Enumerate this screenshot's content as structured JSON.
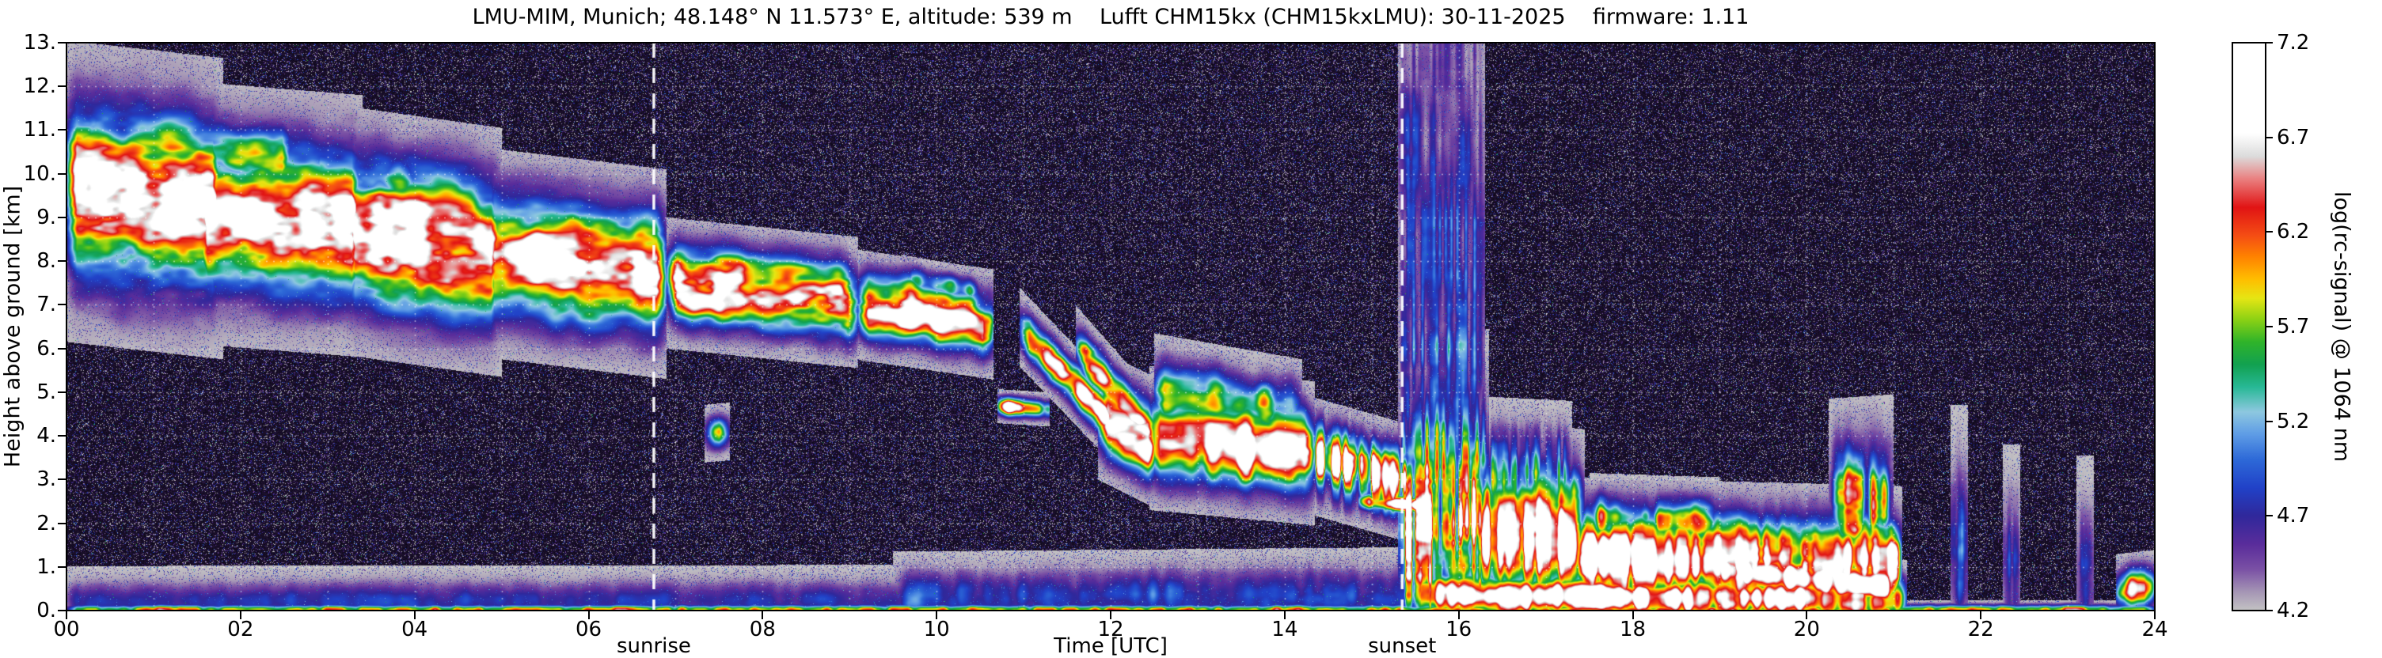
{
  "chart_data": {
    "type": "heatmap",
    "title": "LMU-MIM, Munich; 48.148° N 11.573° E, altitude: 539 m    Lufft CHM15kx (CHM15kxLMU): 30-11-2025    firmware: 1.11",
    "xlabel": "Time [UTC]",
    "ylabel": "Height above ground [km]",
    "xlim": [
      0,
      24
    ],
    "ylim": [
      0,
      13
    ],
    "x_tick_values": [
      0,
      2,
      4,
      6,
      8,
      10,
      12,
      14,
      16,
      18,
      20,
      22,
      24
    ],
    "x_tick_labels": [
      "00",
      "02",
      "04",
      "06",
      "08",
      "10",
      "12",
      "14",
      "16",
      "18",
      "20",
      "22",
      "24"
    ],
    "y_tick_values": [
      0,
      1,
      2,
      3,
      4,
      5,
      6,
      7,
      8,
      9,
      10,
      11,
      12,
      13
    ],
    "y_tick_labels": [
      "0.",
      "1.",
      "2.",
      "3.",
      "4.",
      "5.",
      "6.",
      "7.",
      "8.",
      "9.",
      "10.",
      "11.",
      "12.",
      "13."
    ],
    "grid": {
      "x_step": 1,
      "y_step": 1,
      "style": "dotted",
      "color": "#ffffff"
    },
    "annotations": [
      {
        "label": "sunrise",
        "x": 6.75
      },
      {
        "label": "sunset",
        "x": 15.35
      }
    ],
    "colorbar": {
      "label": "log(rc-signal) @ 1064 nm",
      "vmin": 4.2,
      "vmax": 7.2,
      "tick_values": [
        4.2,
        4.7,
        5.2,
        5.7,
        6.2,
        6.7,
        7.2
      ],
      "tick_labels": [
        "4.2",
        "4.7",
        "5.2",
        "5.7",
        "6.2",
        "6.7",
        "7.2"
      ],
      "stops": [
        [
          4.2,
          "#c4c4c4"
        ],
        [
          4.3,
          "#a595b5"
        ],
        [
          4.42,
          "#7a50a5"
        ],
        [
          4.55,
          "#5a2d9b"
        ],
        [
          4.7,
          "#30289b"
        ],
        [
          4.85,
          "#2142c8"
        ],
        [
          5.0,
          "#2e6ad8"
        ],
        [
          5.13,
          "#5e9ce6"
        ],
        [
          5.25,
          "#8ec8e0"
        ],
        [
          5.38,
          "#28b996"
        ],
        [
          5.5,
          "#12a150"
        ],
        [
          5.62,
          "#30b42a"
        ],
        [
          5.74,
          "#8ed214"
        ],
        [
          5.85,
          "#e6e614"
        ],
        [
          5.95,
          "#ffbe00"
        ],
        [
          6.07,
          "#ff8200"
        ],
        [
          6.18,
          "#f54e14"
        ],
        [
          6.33,
          "#e11414"
        ],
        [
          6.48,
          "#ea8080"
        ],
        [
          6.6,
          "#dcdcdc"
        ],
        [
          6.72,
          "#ffffff"
        ],
        [
          7.2,
          "#ffffff"
        ]
      ]
    },
    "noise": {
      "base": 3.7,
      "spread": 0.52,
      "speckle_p": 0.16,
      "speckle_amp": 0.95,
      "bright_p": 0.01,
      "bright_amp": 1.4,
      "day_factor": 1.3,
      "day_range": [
        6.75,
        15.35
      ],
      "deep": "#02020a",
      "under_top": "#241538"
    },
    "features": [
      {
        "t": [
          0.0,
          1.8
        ],
        "h": [
          9.6,
          9.2
        ],
        "w": 1.15,
        "amp": 7.0,
        "tex": 0.7,
        "stripe": 0.25,
        "sf": 5
      },
      {
        "t": [
          0.0,
          2.6
        ],
        "h": [
          10.8,
          10.3
        ],
        "w": 0.45,
        "amp": 5.6,
        "tex": 0.85,
        "stripe": 0.3,
        "sf": 4
      },
      {
        "t": [
          1.5,
          3.4
        ],
        "h": [
          9.1,
          8.8
        ],
        "w": 1.0,
        "amp": 7.0,
        "tex": 0.7,
        "stripe": 0.25,
        "sf": 5
      },
      {
        "t": [
          3.2,
          5.0
        ],
        "h": [
          8.7,
          8.2
        ],
        "w": 0.95,
        "amp": 7.0,
        "tex": 0.7,
        "stripe": 0.25,
        "sf": 5
      },
      {
        "t": [
          4.8,
          6.9
        ],
        "h": [
          8.2,
          7.7
        ],
        "w": 0.8,
        "amp": 7.0,
        "tex": 0.65,
        "stripe": 0.2,
        "sf": 5
      },
      {
        "t": [
          2.8,
          4.6
        ],
        "h": [
          9.9,
          9.5
        ],
        "w": 0.4,
        "amp": 5.4,
        "tex": 0.85,
        "stripe": 0.4,
        "sf": 5
      },
      {
        "t": [
          6.9,
          9.1
        ],
        "h": [
          7.5,
          7.05
        ],
        "w": 0.5,
        "amp": 6.9,
        "tex": 0.75,
        "stripe": 0.45,
        "sf": 6
      },
      {
        "t": [
          9.1,
          10.65
        ],
        "h": [
          7.0,
          6.55
        ],
        "w": 0.42,
        "amp": 7.0,
        "tex": 0.8,
        "stripe": 0.6,
        "sf": 6
      },
      {
        "t": [
          9.6,
          10.5
        ],
        "h": [
          7.6,
          7.3
        ],
        "w": 0.18,
        "amp": 5.3,
        "tex": 0.85,
        "stripe": 0.5,
        "sf": 8
      },
      {
        "t": [
          7.33,
          7.62
        ],
        "h": [
          4.05,
          4.1
        ],
        "w": 0.22,
        "amp": 5.8,
        "tex": 0.5,
        "stripe": 0.3,
        "sf": 10
      },
      {
        "t": [
          10.7,
          11.3
        ],
        "h": [
          4.68,
          4.6
        ],
        "w": 0.13,
        "amp": 7.1,
        "tex": 0.35,
        "stripe": 0.75,
        "sf": 10
      },
      {
        "t": [
          10.95,
          12.1
        ],
        "h": [
          6.5,
          4.1
        ],
        "w": 0.3,
        "amp": 6.4,
        "tex": 0.7,
        "stripe": 0.35,
        "sf": 8
      },
      {
        "t": [
          11.6,
          12.7
        ],
        "h": [
          6.0,
          3.5
        ],
        "w": 0.33,
        "amp": 6.5,
        "tex": 0.7,
        "stripe": 0.35,
        "sf": 8
      },
      {
        "t": [
          11.85,
          12.55
        ],
        "h": [
          4.5,
          3.8
        ],
        "w": 0.5,
        "amp": 7.1,
        "tex": 0.5,
        "stripe": 0.3,
        "sf": 8
      },
      {
        "t": [
          12.45,
          14.35
        ],
        "h": [
          3.95,
          3.6
        ],
        "w": 0.55,
        "amp": 7.15,
        "tex": 0.55,
        "stripe": 0.45,
        "sf": 8
      },
      {
        "t": [
          12.5,
          14.2
        ],
        "h": [
          5.0,
          4.4
        ],
        "w": 0.45,
        "amp": 5.7,
        "tex": 0.75,
        "stripe": 0.4,
        "sf": 7
      },
      {
        "t": [
          14.3,
          15.45
        ],
        "h": [
          3.55,
          2.9
        ],
        "w": 0.45,
        "amp": 6.8,
        "tex": 0.6,
        "stripe": 0.75,
        "sf": 22
      },
      {
        "t": [
          14.85,
          15.65
        ],
        "h": [
          2.5,
          2.4
        ],
        "w": 0.12,
        "amp": 7.1,
        "tex": 0.3,
        "stripe": 0.5,
        "sf": 12
      },
      {
        "t": [
          15.3,
          16.35
        ],
        "h": [
          2.1,
          2.1
        ],
        "w": 1.45,
        "amp": 6.35,
        "tex": 0.7,
        "stripe": 0.85,
        "sf": 26
      },
      {
        "t": [
          15.3,
          16.3
        ],
        "h": [
          6.5,
          6.5
        ],
        "w": 4.5,
        "amp": 4.8,
        "tex": 0.6,
        "stripe": 0.95,
        "sf": 30
      },
      {
        "t": [
          16.2,
          17.45
        ],
        "h": [
          1.85,
          1.6
        ],
        "w": 0.85,
        "amp": 7.1,
        "tex": 0.5,
        "stripe": 0.5,
        "sf": 20
      },
      {
        "t": [
          16.3,
          17.3
        ],
        "h": [
          3.1,
          3.0
        ],
        "w": 0.6,
        "amp": 5.2,
        "tex": 0.6,
        "stripe": 0.95,
        "sf": 30
      },
      {
        "t": [
          17.35,
          21.1
        ],
        "h": [
          1.25,
          1.05
        ],
        "w": 0.6,
        "amp": 6.9,
        "tex": 0.55,
        "stripe": 0.4,
        "sf": 16
      },
      {
        "t": [
          18.9,
          21.05
        ],
        "h": [
          1.0,
          0.55
        ],
        "w": 0.28,
        "amp": 7.15,
        "tex": 0.35,
        "stripe": 0.3,
        "sf": 12
      },
      {
        "t": [
          20.25,
          21.0
        ],
        "h": [
          2.3,
          2.4
        ],
        "w": 0.85,
        "amp": 5.7,
        "tex": 0.7,
        "stripe": 0.9,
        "sf": 14
      },
      {
        "t": [
          17.5,
          19.0
        ],
        "h": [
          2.1,
          2.0
        ],
        "w": 0.35,
        "amp": 5.4,
        "tex": 0.8,
        "stripe": 0.7,
        "sf": 12
      },
      {
        "t": [
          21.65,
          21.85
        ],
        "h": [
          1.4,
          1.4
        ],
        "w": 1.1,
        "amp": 5.15,
        "tex": 0.5,
        "stripe": 0.6,
        "sf": 30
      },
      {
        "t": [
          22.25,
          22.45
        ],
        "h": [
          1.1,
          1.1
        ],
        "w": 0.9,
        "amp": 5.05,
        "tex": 0.5,
        "stripe": 0.6,
        "sf": 30
      },
      {
        "t": [
          23.1,
          23.3
        ],
        "h": [
          1.0,
          1.0
        ],
        "w": 0.85,
        "amp": 4.95,
        "tex": 0.5,
        "stripe": 0.6,
        "sf": 30
      },
      {
        "t": [
          23.55,
          24.0
        ],
        "h": [
          0.45,
          0.55
        ],
        "w": 0.28,
        "amp": 6.7,
        "tex": 0.5,
        "stripe": 0.4,
        "sf": 12
      },
      {
        "t": [
          0.0,
          15.5
        ],
        "h": [
          0.18,
          0.22
        ],
        "w": 0.28,
        "amp": 4.75,
        "tex": 0.5,
        "stripe": 0.3,
        "sf": 10
      },
      {
        "t": [
          9.5,
          15.5
        ],
        "h": [
          0.3,
          0.4
        ],
        "w": 0.35,
        "amp": 4.85,
        "tex": 0.55,
        "stripe": 0.4,
        "sf": 10
      },
      {
        "t": [
          0.0,
          24.0
        ],
        "h": [
          0.02,
          0.02
        ],
        "w": 0.07,
        "amp": 5.9,
        "tex": 0.4,
        "stripe": 0.3,
        "sf": 12
      },
      {
        "t": [
          15.45,
          21.15
        ],
        "h": [
          0.35,
          0.25
        ],
        "w": 0.3,
        "amp": 6.8,
        "tex": 0.5,
        "stripe": 0.35,
        "sf": 14
      }
    ]
  }
}
